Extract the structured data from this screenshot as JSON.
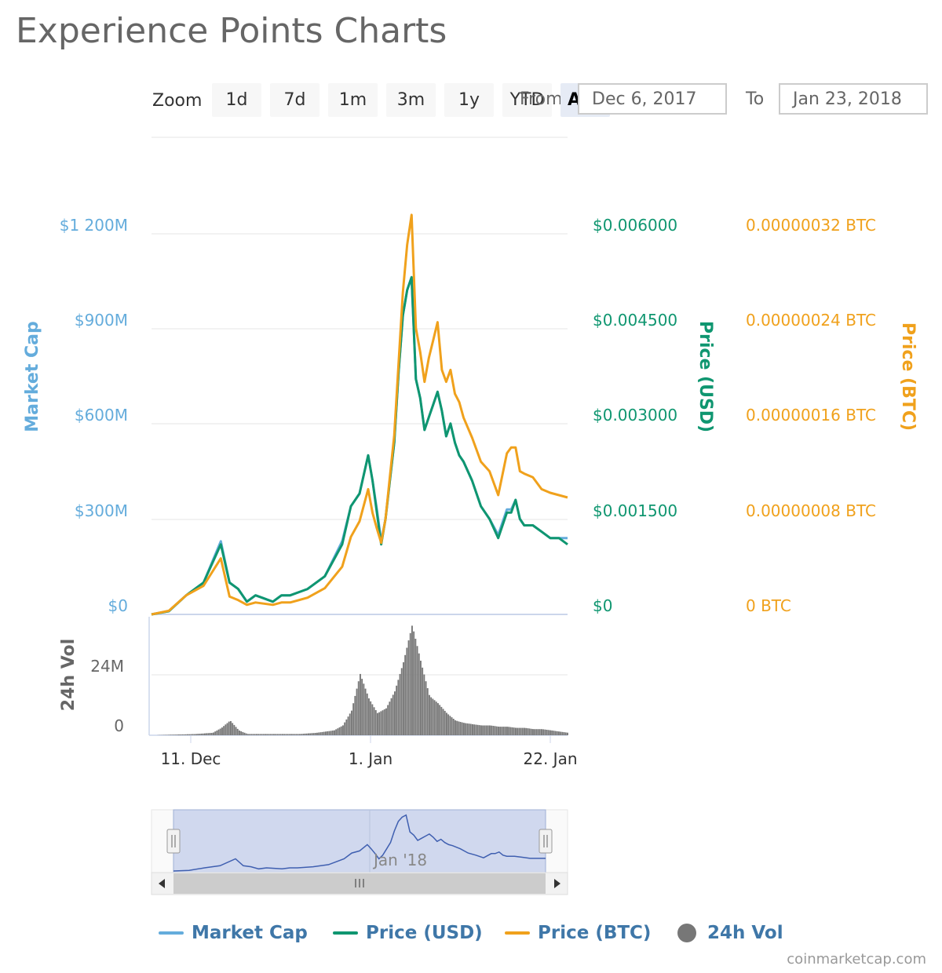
{
  "title": "Experience Points Charts",
  "toolbar": {
    "zoom_label": "Zoom",
    "zoom_buttons": [
      "1d",
      "7d",
      "1m",
      "3m",
      "1y",
      "YTD",
      "ALL"
    ],
    "active_zoom": "ALL",
    "from_label": "From",
    "from_value": "Dec 6, 2017",
    "to_label": "To",
    "to_value": "Jan 23, 2018"
  },
  "colors": {
    "market_cap": "#64acdc",
    "price_usd": "#0f9670",
    "price_btc": "#f0a11c",
    "volume": "#777777",
    "navigator_fill": "#d0d8ee",
    "navigator_line": "#3f5fb0"
  },
  "chart_data": {
    "type": "line",
    "title": "Experience Points Charts",
    "x_range": [
      "Dec 6, 2017",
      "Jan 23, 2018"
    ],
    "x_ticks": [
      "11. Dec",
      "1. Jan",
      "22. Jan"
    ],
    "axes": {
      "market_cap": {
        "label": "Market Cap",
        "ticks": [
          "$0",
          "$300M",
          "$600M",
          "$900M",
          "$1 200M"
        ],
        "range": [
          0,
          1500
        ]
      },
      "price_usd": {
        "label": "Price (USD)",
        "ticks": [
          "$0",
          "$0.001500",
          "$0.003000",
          "$0.004500",
          "$0.006000"
        ],
        "range": [
          0,
          0.0075
        ]
      },
      "price_btc": {
        "label": "Price (BTC)",
        "ticks": [
          "0 BTC",
          "0.00000008 BTC",
          "0.00000016 BTC",
          "0.00000024 BTC",
          "0.00000032 BTC"
        ],
        "range": [
          0,
          4e-07
        ]
      },
      "volume": {
        "label": "24h Vol",
        "ticks": [
          "0",
          "24M"
        ],
        "range": [
          0,
          48
        ]
      }
    },
    "day_offsets": [
      0,
      2,
      4,
      6,
      8,
      9,
      10,
      11,
      12,
      13,
      14,
      15,
      16,
      18,
      20,
      22,
      23,
      24,
      25,
      25.5,
      26,
      26.5,
      27,
      27.5,
      28,
      28.5,
      29,
      29.5,
      30,
      30.5,
      31,
      31.5,
      32,
      32.5,
      33,
      33.5,
      34,
      34.5,
      35,
      35.5,
      36,
      37,
      38,
      39,
      40,
      41,
      41.5,
      42,
      42.5,
      43,
      44,
      45,
      46,
      47,
      48
    ],
    "series": [
      {
        "name": "Price (USD)",
        "unit": "USD",
        "values": [
          0,
          5e-05,
          0.0003,
          0.0005,
          0.0011,
          0.0005,
          0.0004,
          0.0002,
          0.0003,
          0.00025,
          0.0002,
          0.0003,
          0.0003,
          0.0004,
          0.0006,
          0.0011,
          0.0017,
          0.0019,
          0.0025,
          0.0021,
          0.0016,
          0.0011,
          0.0015,
          0.0021,
          0.0027,
          0.0038,
          0.0047,
          0.0051,
          0.0053,
          0.0037,
          0.0034,
          0.0029,
          0.0031,
          0.0033,
          0.0035,
          0.0032,
          0.0028,
          0.003,
          0.0027,
          0.0025,
          0.0024,
          0.0021,
          0.0017,
          0.0015,
          0.0012,
          0.0016,
          0.0016,
          0.0018,
          0.0015,
          0.0014,
          0.0014,
          0.0013,
          0.0012,
          0.0012,
          0.0011
        ]
      },
      {
        "name": "Market Cap",
        "unit": "USD millions",
        "values": [
          0,
          10,
          60,
          100,
          230,
          100,
          80,
          40,
          60,
          50,
          40,
          60,
          60,
          80,
          120,
          230,
          340,
          380,
          500,
          420,
          330,
          230,
          300,
          420,
          540,
          760,
          940,
          1020,
          1060,
          740,
          680,
          580,
          620,
          660,
          700,
          640,
          560,
          600,
          540,
          500,
          480,
          420,
          340,
          300,
          250,
          330,
          330,
          360,
          300,
          280,
          280,
          260,
          240,
          240,
          240
        ]
      },
      {
        "name": "Price (BTC)",
        "unit": "BTC",
        "values": [
          0,
          3e-09,
          1.6e-08,
          2.4e-08,
          4.7e-08,
          1.5e-08,
          1.2e-08,
          8e-09,
          1e-08,
          9e-09,
          8e-09,
          1e-08,
          1e-08,
          1.4e-08,
          2.2e-08,
          4e-08,
          6.5e-08,
          7.8e-08,
          1.05e-07,
          8.5e-08,
          7.2e-08,
          6e-08,
          8e-08,
          1.15e-07,
          1.5e-07,
          2.1e-07,
          2.7e-07,
          3.1e-07,
          3.35e-07,
          2.4e-07,
          2.2e-07,
          1.95e-07,
          2.15e-07,
          2.3e-07,
          2.45e-07,
          2.05e-07,
          1.95e-07,
          2.05e-07,
          1.85e-07,
          1.78e-07,
          1.65e-07,
          1.48e-07,
          1.28e-07,
          1.2e-07,
          1e-07,
          1.35e-07,
          1.4e-07,
          1.4e-07,
          1.2e-07,
          1.18e-07,
          1.15e-07,
          1.05e-07,
          1.02e-07,
          1e-07,
          9.8e-08
        ]
      }
    ],
    "volume": {
      "name": "24h Vol",
      "unit": "USD millions",
      "day_offsets": [
        0,
        5,
        7,
        8,
        9,
        10,
        11,
        12,
        13,
        15,
        17,
        19,
        21,
        22,
        23,
        24,
        25,
        26,
        27,
        28,
        29,
        30,
        31,
        32,
        33,
        34,
        35,
        36,
        37,
        38,
        39,
        40,
        41,
        42,
        43,
        44,
        45,
        46,
        47,
        48
      ],
      "values": [
        0,
        0.5,
        1,
        3,
        6,
        2,
        0.5,
        0.5,
        0.5,
        0.5,
        0.5,
        1,
        2,
        4,
        10,
        25,
        15,
        9,
        11,
        18,
        30,
        45,
        30,
        16,
        13,
        9,
        6,
        5,
        4.5,
        4,
        4,
        3.5,
        3.5,
        3,
        3,
        2.5,
        2.5,
        2,
        1.5,
        1
      ]
    },
    "navigator": {
      "label": "Jan '18"
    }
  },
  "legend": [
    {
      "label": "Market Cap",
      "type": "line",
      "series": "market_cap"
    },
    {
      "label": "Price (USD)",
      "type": "line",
      "series": "price_usd"
    },
    {
      "label": "Price (BTC)",
      "type": "line",
      "series": "price_btc"
    },
    {
      "label": "24h Vol",
      "type": "dot",
      "series": "volume"
    }
  ],
  "credit": "coinmarketcap.com"
}
